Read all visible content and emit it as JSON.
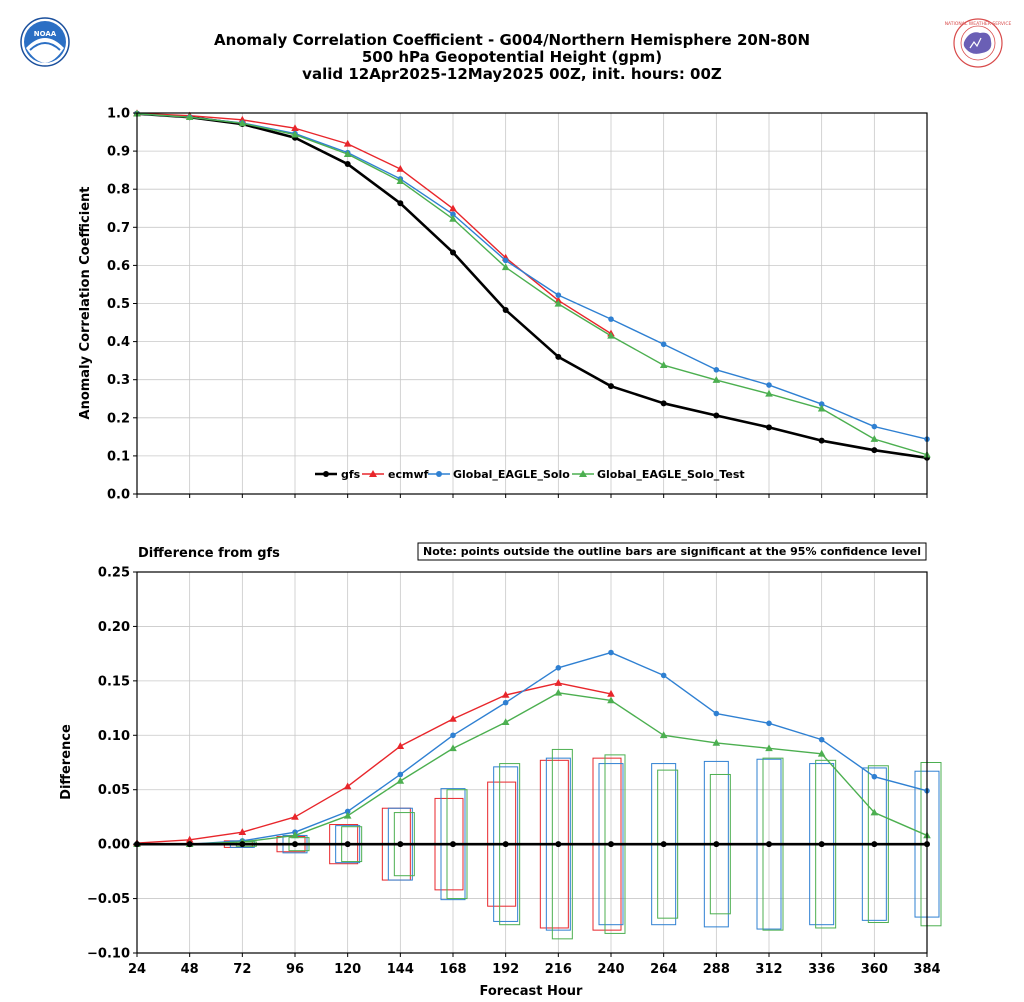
{
  "title": {
    "line1": "Anomaly Correlation Coefficient - G004/Northern Hemisphere 20N-80N",
    "line2": "500 hPa Geopotential Height (gpm)",
    "line3": "valid 12Apr2025-12May2025 00Z, init. hours: 00Z"
  },
  "logos": {
    "left": {
      "name": "NOAA",
      "text": "NOAA"
    },
    "right": {
      "name": "National Weather Service",
      "text": "NATIONAL WEATHER SERVICE"
    }
  },
  "colors": {
    "gfs": "#000000",
    "ecmwf": "#e8262b",
    "Global_EAGLE_Solo": "#2f80d2",
    "Global_EAGLE_Solo_Test": "#4caf50",
    "grid": "#c8c8c8"
  },
  "chart_data": [
    {
      "type": "line",
      "name": "acc",
      "ylabel": "Anomaly Correlation Coefficient",
      "xlabel": "",
      "xlim": [
        24,
        384
      ],
      "ylim": [
        0.0,
        1.0
      ],
      "x": [
        24,
        48,
        72,
        96,
        120,
        144,
        168,
        192,
        216,
        240,
        264,
        288,
        312,
        336,
        360,
        384
      ],
      "xticks": [
        "24",
        "48",
        "72",
        "96",
        "120",
        "144",
        "168",
        "192",
        "216",
        "240",
        "264",
        "288",
        "312",
        "336",
        "360",
        "384"
      ],
      "yticks": [
        0.0,
        0.1,
        0.2,
        0.3,
        0.4,
        0.5,
        0.6,
        0.7,
        0.8,
        0.9,
        1.0
      ],
      "ytick_labels": [
        "0.0",
        "0.1",
        "0.2",
        "0.3",
        "0.4",
        "0.5",
        "0.6",
        "0.7",
        "0.8",
        "0.9",
        "1.0"
      ],
      "legend": "bottom-center",
      "grid": true,
      "series": [
        {
          "name": "gfs",
          "marker": "circle",
          "values": [
            0.998,
            0.989,
            0.971,
            0.935,
            0.866,
            0.763,
            0.634,
            0.483,
            0.36,
            0.283,
            0.238,
            0.206,
            0.175,
            0.14,
            0.115,
            0.095
          ]
        },
        {
          "name": "ecmwf",
          "marker": "triangle",
          "values": [
            0.999,
            0.993,
            0.982,
            0.96,
            0.919,
            0.853,
            0.749,
            0.62,
            0.508,
            0.421,
            null,
            null,
            null,
            null,
            null,
            null
          ]
        },
        {
          "name": "Global_EAGLE_Solo",
          "marker": "circle",
          "values": [
            0.998,
            0.989,
            0.974,
            0.946,
            0.896,
            0.827,
            0.734,
            0.613,
            0.522,
            0.459,
            0.393,
            0.326,
            0.286,
            0.236,
            0.177,
            0.144
          ]
        },
        {
          "name": "Global_EAGLE_Solo_Test",
          "marker": "triangle",
          "values": [
            0.998,
            0.989,
            0.973,
            0.943,
            0.892,
            0.821,
            0.722,
            0.595,
            0.499,
            0.415,
            0.338,
            0.299,
            0.263,
            0.224,
            0.144,
            0.103
          ]
        }
      ]
    },
    {
      "type": "line",
      "name": "diff",
      "subtitle": "Difference from gfs",
      "note": "Note: points outside the outline bars are significant at the 95% confidence level",
      "ylabel": "Difference",
      "xlabel": "Forecast Hour",
      "xlim": [
        24,
        384
      ],
      "ylim": [
        -0.1,
        0.25
      ],
      "x": [
        24,
        48,
        72,
        96,
        120,
        144,
        168,
        192,
        216,
        240,
        264,
        288,
        312,
        336,
        360,
        384
      ],
      "xticks": [
        "24",
        "48",
        "72",
        "96",
        "120",
        "144",
        "168",
        "192",
        "216",
        "240",
        "264",
        "288",
        "312",
        "336",
        "360",
        "384"
      ],
      "yticks": [
        -0.1,
        -0.05,
        0.0,
        0.05,
        0.1,
        0.15,
        0.2,
        0.25
      ],
      "ytick_labels": [
        "−0.10",
        "−0.05",
        "0.00",
        "0.05",
        "0.10",
        "0.15",
        "0.20",
        "0.25"
      ],
      "grid": true,
      "series": [
        {
          "name": "gfs",
          "marker": "circle",
          "values": [
            0,
            0,
            0,
            0,
            0,
            0,
            0,
            0,
            0,
            0,
            0,
            0,
            0,
            0,
            0,
            0
          ]
        },
        {
          "name": "ecmwf",
          "marker": "triangle",
          "values": [
            0.001,
            0.004,
            0.011,
            0.025,
            0.053,
            0.09,
            0.115,
            0.137,
            0.148,
            0.138,
            null,
            null,
            null,
            null,
            null,
            null
          ]
        },
        {
          "name": "Global_EAGLE_Solo",
          "marker": "circle",
          "values": [
            0.0,
            0.0,
            0.003,
            0.011,
            0.03,
            0.064,
            0.1,
            0.13,
            0.162,
            0.176,
            0.155,
            0.12,
            0.111,
            0.096,
            0.062,
            0.049
          ]
        },
        {
          "name": "Global_EAGLE_Solo_Test",
          "marker": "triangle",
          "values": [
            0.0,
            0.0,
            0.002,
            0.008,
            0.026,
            0.058,
            0.088,
            0.112,
            0.139,
            0.132,
            0.1,
            0.093,
            0.088,
            0.083,
            0.029,
            0.008
          ]
        }
      ],
      "confidence_bars": [
        {
          "name": "ecmwf",
          "half_widths": [
            0.0,
            0.0,
            0.003,
            0.007,
            0.018,
            0.033,
            0.042,
            0.057,
            0.077,
            0.079,
            null,
            null,
            null,
            null,
            null,
            null
          ]
        },
        {
          "name": "Global_EAGLE_Solo",
          "half_widths": [
            0.0,
            0.0,
            0.003,
            0.008,
            0.017,
            0.033,
            0.051,
            0.071,
            0.079,
            0.074,
            0.074,
            0.076,
            0.078,
            0.074,
            0.07,
            0.067
          ]
        },
        {
          "name": "Global_EAGLE_Solo_Test",
          "half_widths": [
            0.0,
            0.0,
            0.002,
            0.006,
            0.016,
            0.029,
            0.05,
            0.074,
            0.087,
            0.082,
            0.068,
            0.064,
            0.079,
            0.077,
            0.072,
            0.075
          ]
        }
      ]
    }
  ]
}
